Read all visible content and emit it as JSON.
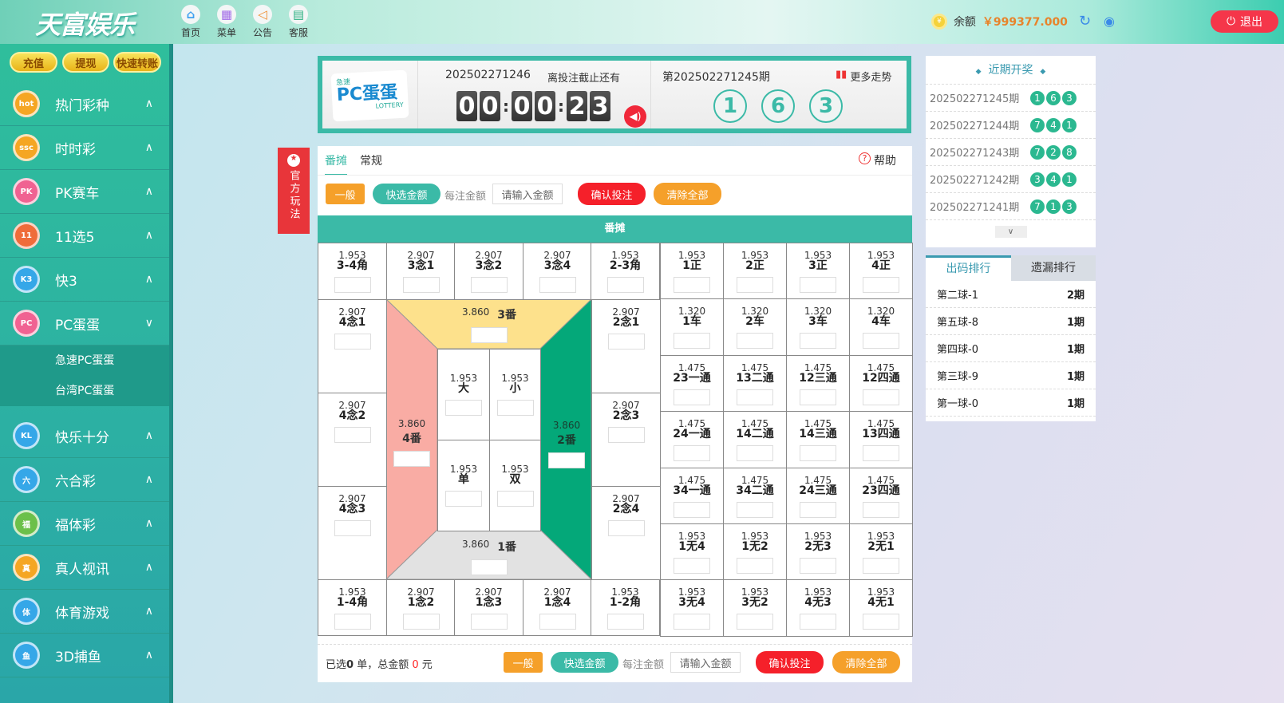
{
  "header": {
    "logo": "天富娱乐",
    "nav": [
      {
        "label": "首页",
        "icon": "home-icon"
      },
      {
        "label": "菜单",
        "icon": "grid-menu-icon"
      },
      {
        "label": "公告",
        "icon": "speaker-icon"
      },
      {
        "label": "客服",
        "icon": "chat-icon"
      }
    ],
    "balance_label": "余额",
    "balance": "￥999377.000",
    "logout": "退出"
  },
  "sidebar": {
    "buttons": [
      "充值",
      "提现",
      "快速转账"
    ],
    "items": [
      {
        "label": "热门彩种",
        "color": "#f5a623",
        "badge": "hot"
      },
      {
        "label": "时时彩",
        "color": "#f5a623",
        "badge": "ssc"
      },
      {
        "label": "PK赛车",
        "color": "#f06292",
        "badge": "PK"
      },
      {
        "label": "11选5",
        "color": "#ef6c3a",
        "badge": "11"
      },
      {
        "label": "快3",
        "color": "#35a7e8",
        "badge": "K3"
      }
    ],
    "active": {
      "label": "PC蛋蛋",
      "color": "#f06292",
      "badge": "PC",
      "children": [
        "急速PC蛋蛋",
        "台湾PC蛋蛋"
      ]
    },
    "items2": [
      {
        "label": "快乐十分",
        "color": "#35a7e8",
        "badge": "KL"
      },
      {
        "label": "六合彩",
        "color": "#35a7e8",
        "badge": "六"
      },
      {
        "label": "福体彩",
        "color": "#6cc04a",
        "badge": "福"
      },
      {
        "label": "真人视讯",
        "color": "#f5a623",
        "badge": "真"
      },
      {
        "label": "体育游戏",
        "color": "#35a7e8",
        "badge": "体"
      },
      {
        "label": "3D捕鱼",
        "color": "#35a7e8",
        "badge": "鱼"
      }
    ]
  },
  "lottery": {
    "logo_small": "急速",
    "logo_main": "PC蛋蛋",
    "logo_sub": "LOTTERY",
    "current_issue": "202502271246",
    "countdown_label": "离投注截止还有",
    "countdown": [
      "0",
      "0",
      "0",
      "0",
      "2",
      "3"
    ],
    "last_issue": "第202502271245期",
    "trend": "更多走势",
    "result": [
      "1",
      "6",
      "3"
    ]
  },
  "official_tab": "官方玩法",
  "main": {
    "tabs": [
      "番摊",
      "常规"
    ],
    "help": "帮助",
    "mode": "一般",
    "quick": "快选金额",
    "per_bet": "每注金额",
    "placeholder": "请输入金额",
    "confirm": "确认投注",
    "clear": "清除全部",
    "board_title": "番摊",
    "top_row": [
      [
        "1.953",
        "3-4角"
      ],
      [
        "2.907",
        "3念1"
      ],
      [
        "2.907",
        "3念2"
      ],
      [
        "2.907",
        "3念4"
      ],
      [
        "1.953",
        "2-3角"
      ]
    ],
    "bottom_row": [
      [
        "1.953",
        "1-4角"
      ],
      [
        "2.907",
        "1念2"
      ],
      [
        "2.907",
        "1念3"
      ],
      [
        "2.907",
        "1念4"
      ],
      [
        "1.953",
        "1-2角"
      ]
    ],
    "left_col": [
      [
        "2.907",
        "4念1"
      ],
      [
        "2.907",
        "4念2"
      ],
      [
        "2.907",
        "4念3"
      ]
    ],
    "right_col": [
      [
        "2.907",
        "2念1"
      ],
      [
        "2.907",
        "2念3"
      ],
      [
        "2.907",
        "2念4"
      ]
    ],
    "fan": {
      "top": [
        "3.860",
        "3番"
      ],
      "left": [
        "3.860",
        "4番"
      ],
      "right": [
        "3.860",
        "2番"
      ],
      "bottom": [
        "3.860",
        "1番"
      ]
    },
    "inner": [
      [
        "1.953",
        "大"
      ],
      [
        "1.953",
        "小"
      ],
      [
        "1.953",
        "单"
      ],
      [
        "1.953",
        "双"
      ]
    ],
    "right_grid": [
      [
        [
          "1.953",
          "1正"
        ],
        [
          "1.953",
          "2正"
        ],
        [
          "1.953",
          "3正"
        ],
        [
          "1.953",
          "4正"
        ]
      ],
      [
        [
          "1.320",
          "1车"
        ],
        [
          "1.320",
          "2车"
        ],
        [
          "1.320",
          "3车"
        ],
        [
          "1.320",
          "4车"
        ]
      ],
      [
        [
          "1.475",
          "23一通"
        ],
        [
          "1.475",
          "13二通"
        ],
        [
          "1.475",
          "12三通"
        ],
        [
          "1.475",
          "12四通"
        ]
      ],
      [
        [
          "1.475",
          "24一通"
        ],
        [
          "1.475",
          "14二通"
        ],
        [
          "1.475",
          "14三通"
        ],
        [
          "1.475",
          "13四通"
        ]
      ],
      [
        [
          "1.475",
          "34一通"
        ],
        [
          "1.475",
          "34二通"
        ],
        [
          "1.475",
          "24三通"
        ],
        [
          "1.475",
          "23四通"
        ]
      ],
      [
        [
          "1.953",
          "1无4"
        ],
        [
          "1.953",
          "1无2"
        ],
        [
          "1.953",
          "2无3"
        ],
        [
          "1.953",
          "2无1"
        ]
      ],
      [
        [
          "1.953",
          "3无4"
        ],
        [
          "1.953",
          "3无2"
        ],
        [
          "1.953",
          "4无3"
        ],
        [
          "1.953",
          "4无1"
        ]
      ]
    ],
    "footer": {
      "selected_prefix": "已选",
      "selected_count": "0",
      "selected_unit": "单，总金额",
      "total": "0",
      "currency": "元"
    }
  },
  "recent": {
    "title": "近期开奖",
    "rows": [
      {
        "issue": "202502271245期",
        "balls": [
          "1",
          "6",
          "3"
        ]
      },
      {
        "issue": "202502271244期",
        "balls": [
          "7",
          "4",
          "1"
        ]
      },
      {
        "issue": "202502271243期",
        "balls": [
          "7",
          "2",
          "8"
        ]
      },
      {
        "issue": "202502271242期",
        "balls": [
          "3",
          "4",
          "1"
        ]
      },
      {
        "issue": "202502271241期",
        "balls": [
          "7",
          "1",
          "3"
        ]
      }
    ]
  },
  "ranking": {
    "tabs": [
      "出码排行",
      "遗漏排行"
    ],
    "rows": [
      [
        "第二球-1",
        "2期"
      ],
      [
        "第五球-8",
        "1期"
      ],
      [
        "第四球-0",
        "1期"
      ],
      [
        "第三球-9",
        "1期"
      ],
      [
        "第一球-0",
        "1期"
      ]
    ]
  },
  "colors": {
    "accent": "#3bbaa7",
    "danger": "#f5202a",
    "orange": "#f5a02a",
    "fan_top": "#fde18c",
    "fan_left": "#f9aca4",
    "fan_right": "#04a879",
    "fan_bottom": "#e2e2e2"
  }
}
